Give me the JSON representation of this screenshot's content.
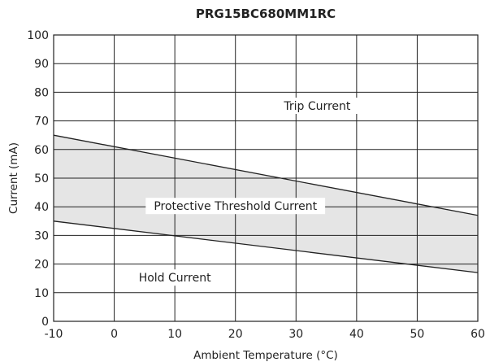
{
  "chart_data": {
    "type": "area",
    "title": "PRG15BC680MM1RC",
    "xlabel": "Ambient Temperature (°C)",
    "ylabel": "Current (mA)",
    "xlim": [
      -10,
      60
    ],
    "ylim": [
      0,
      100
    ],
    "x_ticks": [
      -10,
      0,
      10,
      20,
      30,
      40,
      50,
      60
    ],
    "y_ticks": [
      0,
      10,
      20,
      30,
      40,
      50,
      60,
      70,
      80,
      90,
      100
    ],
    "grid": true,
    "series": [
      {
        "name": "Trip Current",
        "x": [
          -10,
          60
        ],
        "y": [
          65,
          37
        ]
      },
      {
        "name": "Hold Current",
        "x": [
          -10,
          60
        ],
        "y": [
          35,
          17
        ]
      }
    ],
    "band": {
      "label": "Protective Threshold Current",
      "fill": "#e5e5e5"
    },
    "region_labels": [
      {
        "text": "Trip Current",
        "x": 33.5,
        "y": 75
      },
      {
        "text": "Protective Threshold Current",
        "x": 20,
        "y": 40
      },
      {
        "text": "Hold Current",
        "x": 10,
        "y": 15
      }
    ],
    "colors": {
      "line": "#222222",
      "grid": "#222222",
      "band": "#e5e5e5"
    }
  }
}
